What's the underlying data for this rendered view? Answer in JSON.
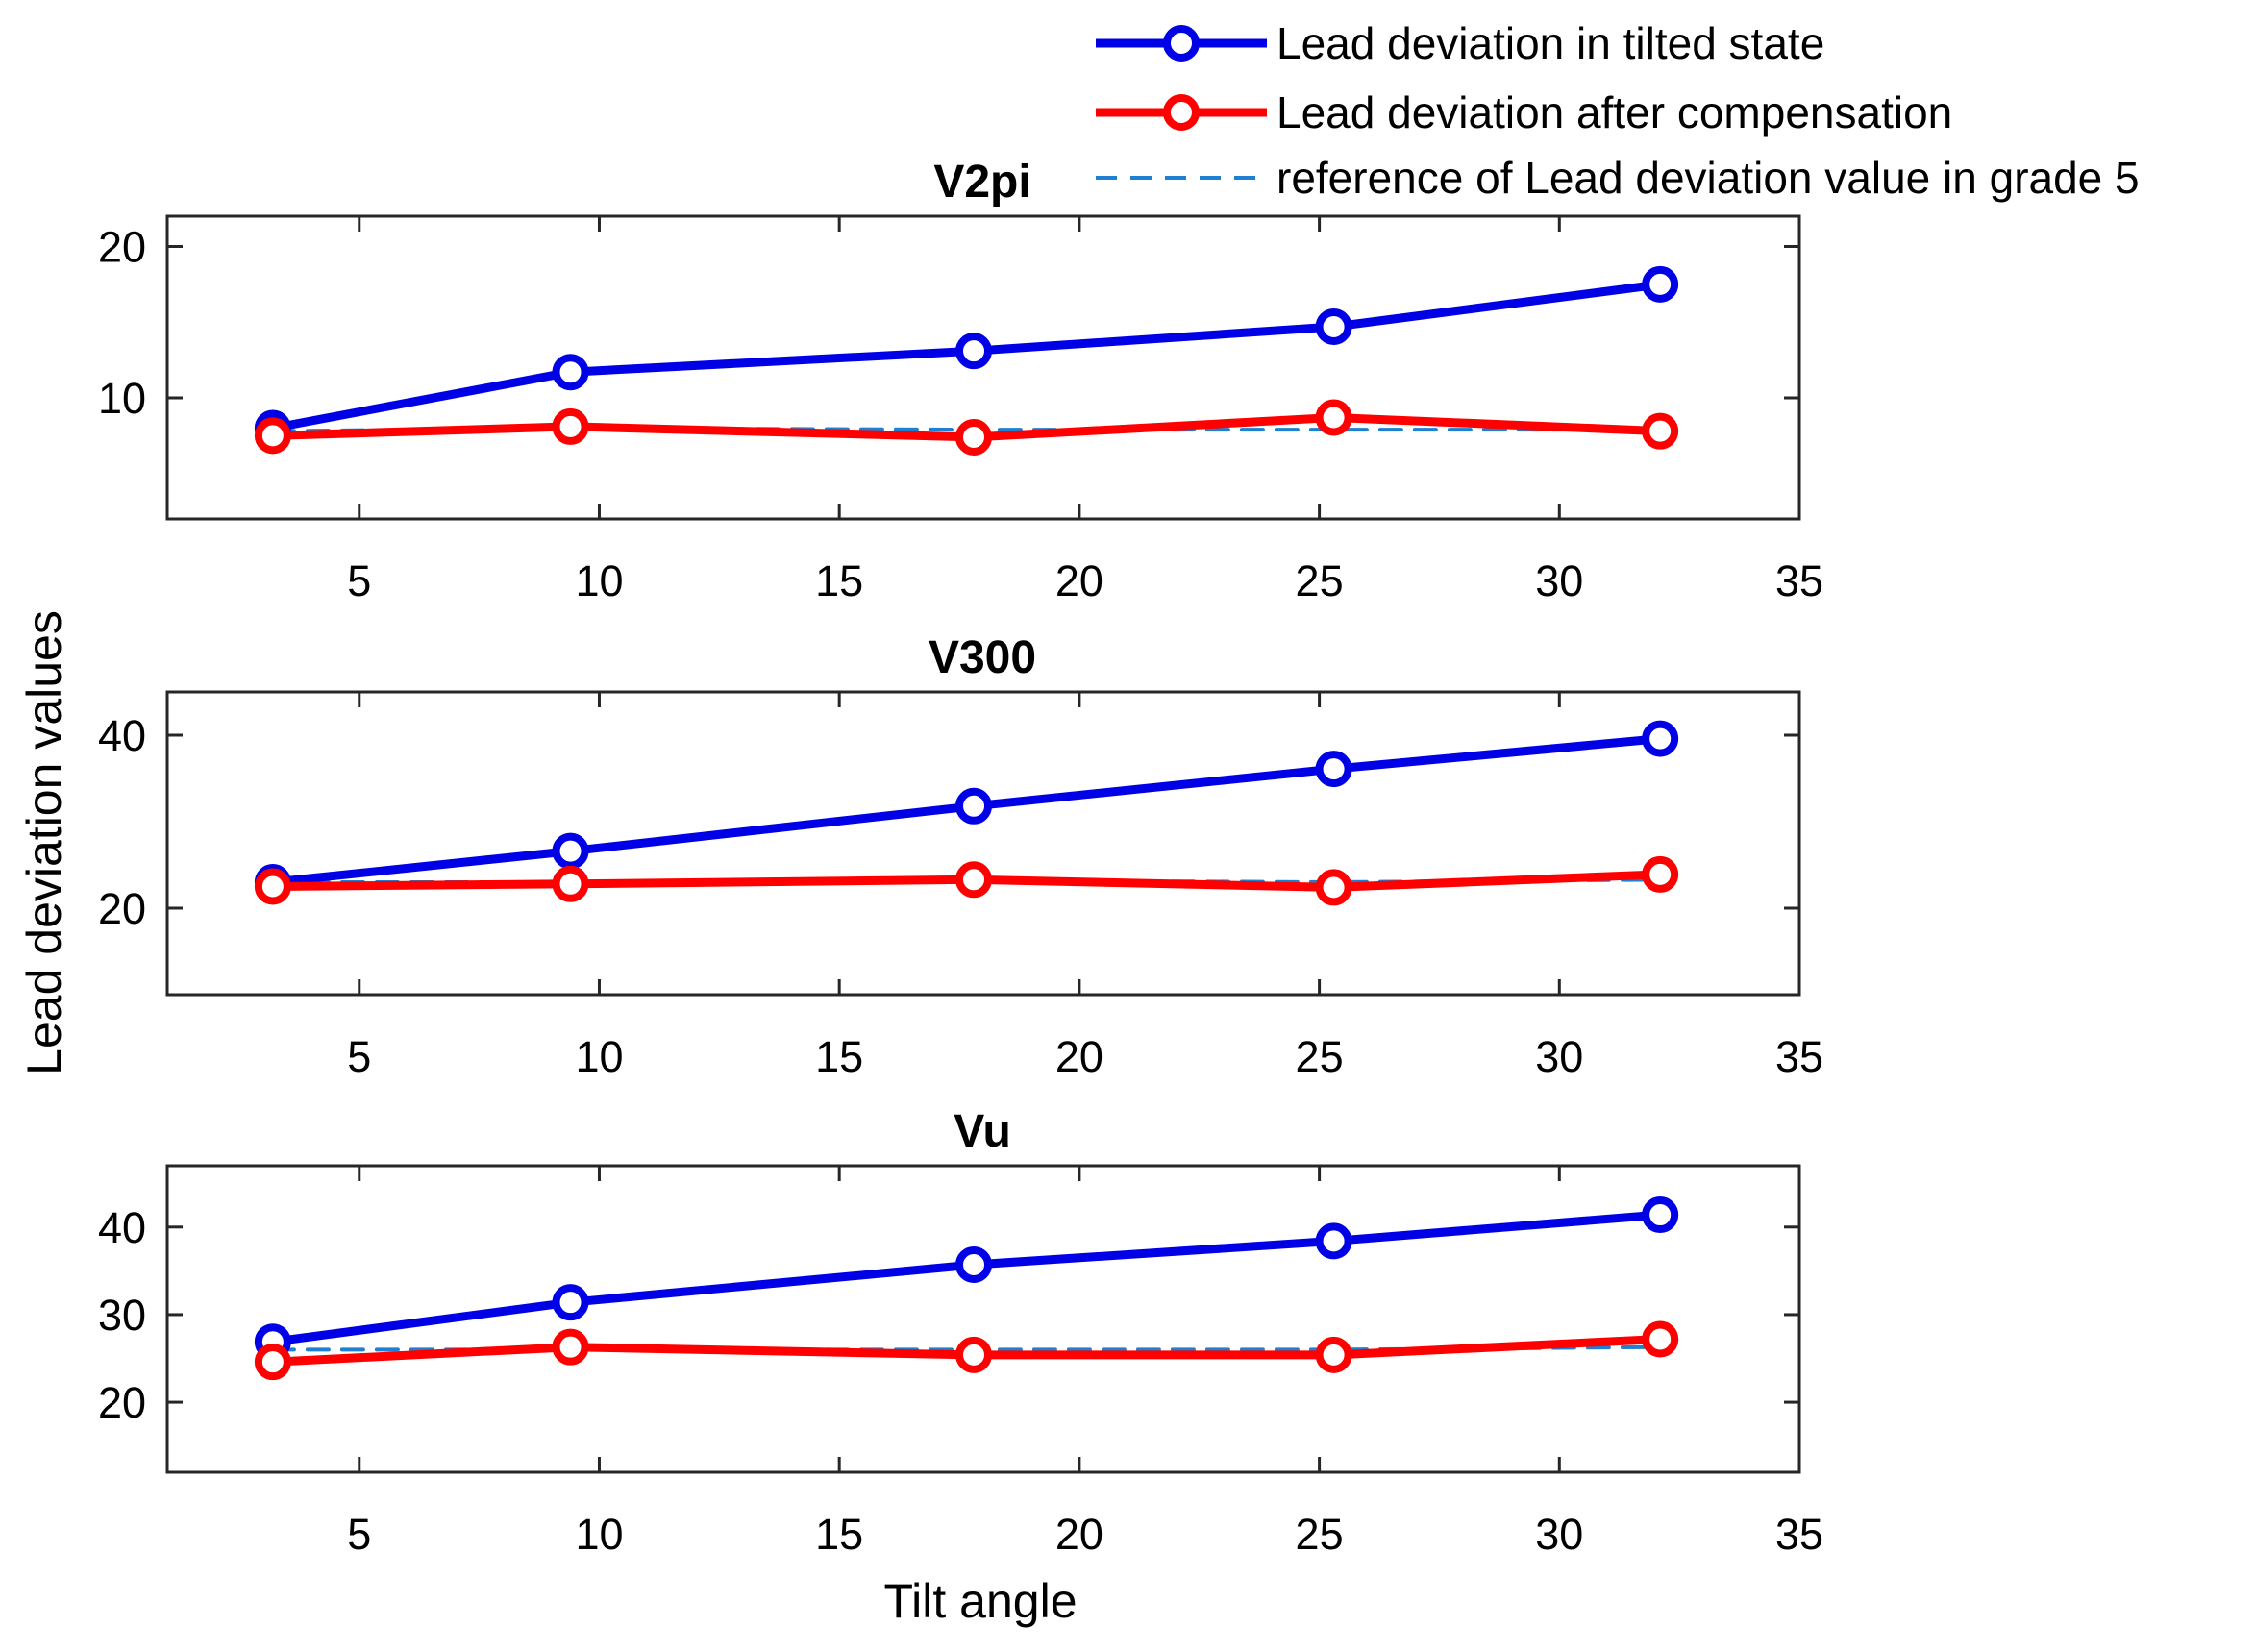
{
  "chart_data": {
    "type": "line",
    "xlabel": "Tilt angle",
    "ylabel": "Lead deviation values",
    "xlim": [
      1,
      35
    ],
    "xticks": [
      5,
      10,
      15,
      20,
      25,
      30,
      35
    ],
    "x": [
      3.2,
      9.4,
      17.8,
      25.3,
      32.1
    ],
    "legend": {
      "position": "top-right",
      "entries": [
        {
          "label": "Lead deviation in tilted state",
          "color": "#0000e6",
          "style": "solid-circle"
        },
        {
          "label": "Lead deviation after compensation",
          "color": "#ff0000",
          "style": "solid-circle"
        },
        {
          "label": "reference of Lead deviation value in grade 5",
          "color": "#1f7fd0",
          "style": "dashed"
        }
      ]
    },
    "panels": [
      {
        "title": "V2pi",
        "ylim": [
          2,
          22
        ],
        "yticks": [
          10,
          20
        ],
        "series": [
          {
            "name": "Lead deviation in tilted state",
            "values": [
              8.0,
              11.7,
              13.1,
              14.7,
              17.5
            ]
          },
          {
            "name": "Lead deviation after compensation",
            "values": [
              7.5,
              8.1,
              7.4,
              8.7,
              7.8
            ]
          },
          {
            "name": "reference of Lead deviation value in grade 5",
            "values": [
              7.8,
              8.0,
              7.9,
              7.9,
              7.9
            ]
          }
        ]
      },
      {
        "title": "V300",
        "ylim": [
          10,
          45
        ],
        "yticks": [
          20,
          40
        ],
        "series": [
          {
            "name": "Lead deviation in tilted state",
            "values": [
              23.0,
              26.6,
              31.8,
              36.1,
              39.6
            ]
          },
          {
            "name": "Lead deviation after compensation",
            "values": [
              22.5,
              22.8,
              23.3,
              22.4,
              23.9
            ]
          },
          {
            "name": "reference of Lead deviation value in grade 5",
            "values": [
              23.0,
              23.0,
              23.2,
              23.0,
              23.3
            ]
          }
        ]
      },
      {
        "title": "Vu",
        "ylim": [
          12,
          47
        ],
        "yticks": [
          20,
          30,
          40
        ],
        "series": [
          {
            "name": "Lead deviation in tilted state",
            "values": [
              26.9,
              31.4,
              35.7,
              38.4,
              41.4
            ]
          },
          {
            "name": "Lead deviation after compensation",
            "values": [
              24.6,
              26.3,
              25.4,
              25.4,
              27.2
            ]
          },
          {
            "name": "reference of Lead deviation value in grade 5",
            "values": [
              26.0,
              26.0,
              26.0,
              26.0,
              26.3
            ]
          }
        ]
      }
    ]
  }
}
